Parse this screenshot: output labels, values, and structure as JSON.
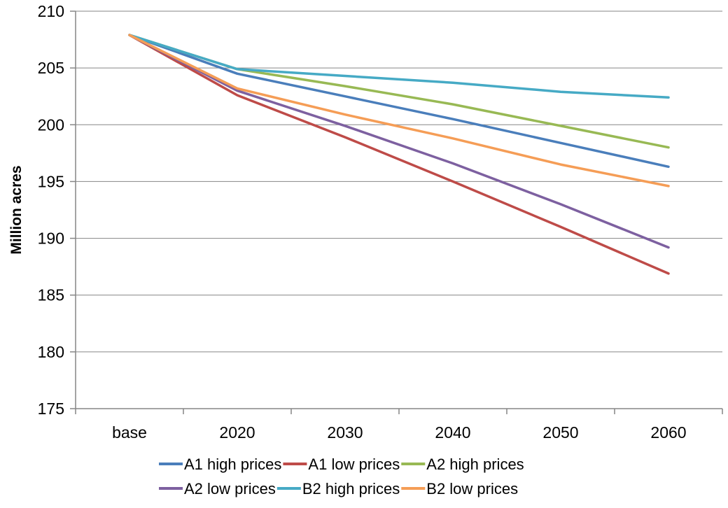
{
  "chart_data": {
    "type": "line",
    "title": "",
    "xlabel": "",
    "ylabel": "Million acres",
    "categories": [
      "base",
      "2020",
      "2030",
      "2040",
      "2050",
      "2060"
    ],
    "ylim": [
      175,
      210
    ],
    "yticks": [
      "175",
      "180",
      "185",
      "190",
      "195",
      "200",
      "205",
      "210"
    ],
    "grid": true,
    "legend_position": "bottom",
    "series": [
      {
        "name": "A1 high prices",
        "color": "#4a7ebb",
        "values": [
          207.9,
          204.5,
          202.5,
          200.5,
          198.4,
          196.3
        ]
      },
      {
        "name": "A1 low prices",
        "color": "#be4b48",
        "values": [
          207.9,
          202.6,
          198.9,
          195.0,
          191.0,
          186.9
        ]
      },
      {
        "name": "A2 high prices",
        "color": "#98b954",
        "values": [
          207.9,
          204.9,
          203.4,
          201.8,
          199.9,
          198.0
        ]
      },
      {
        "name": "A2 low prices",
        "color": "#7d60a0",
        "values": [
          207.9,
          203.0,
          199.9,
          196.6,
          193.0,
          189.2
        ]
      },
      {
        "name": "B2 high prices",
        "color": "#46aac5",
        "values": [
          207.9,
          204.9,
          204.3,
          203.7,
          202.9,
          202.4
        ]
      },
      {
        "name": "B2 low prices",
        "color": "#f59d56",
        "values": [
          207.9,
          203.2,
          200.9,
          198.8,
          196.5,
          194.6
        ]
      }
    ]
  }
}
